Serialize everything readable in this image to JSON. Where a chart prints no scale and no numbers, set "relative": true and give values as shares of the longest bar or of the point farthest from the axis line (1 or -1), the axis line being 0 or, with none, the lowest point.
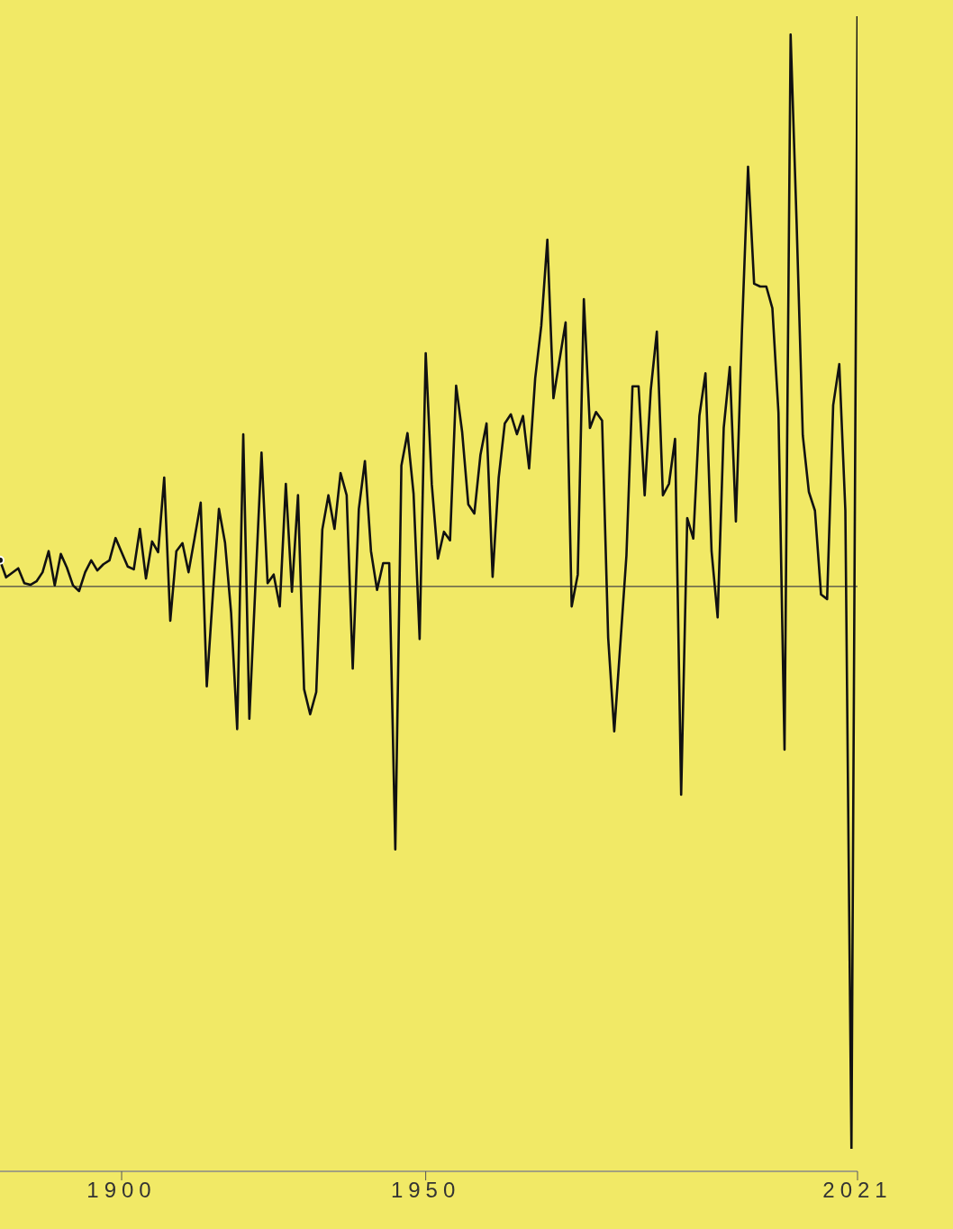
{
  "chart_data": {
    "type": "line",
    "relative": true,
    "x": [
      1880,
      1881,
      1882,
      1883,
      1884,
      1885,
      1886,
      1887,
      1888,
      1889,
      1890,
      1891,
      1892,
      1893,
      1894,
      1895,
      1896,
      1897,
      1898,
      1899,
      1900,
      1901,
      1902,
      1903,
      1904,
      1905,
      1906,
      1907,
      1908,
      1909,
      1910,
      1911,
      1912,
      1913,
      1914,
      1915,
      1916,
      1917,
      1918,
      1919,
      1920,
      1921,
      1922,
      1923,
      1924,
      1925,
      1926,
      1927,
      1928,
      1929,
      1930,
      1931,
      1932,
      1933,
      1934,
      1935,
      1936,
      1937,
      1938,
      1939,
      1940,
      1941,
      1942,
      1943,
      1944,
      1945,
      1946,
      1947,
      1948,
      1949,
      1950,
      1951,
      1952,
      1953,
      1954,
      1955,
      1956,
      1957,
      1958,
      1959,
      1960,
      1961,
      1962,
      1963,
      1964,
      1965,
      1966,
      1967,
      1968,
      1969,
      1970,
      1971,
      1972,
      1973,
      1974,
      1975,
      1976,
      1977,
      1978,
      1979,
      1980,
      1981,
      1982,
      1983,
      1984,
      1985,
      1986,
      1987,
      1988,
      1989,
      1990,
      1991,
      1992,
      1993,
      1994,
      1995,
      1996,
      1997,
      1998,
      1999,
      2000,
      2001,
      2002,
      2003,
      2004,
      2005,
      2006,
      2007,
      2008,
      2009,
      2010,
      2011,
      2012,
      2013,
      2014,
      2015,
      2016,
      2017,
      2018,
      2019,
      2020,
      2021
    ],
    "series": [
      {
        "color": "#111111",
        "values": [
          0.046,
          0.016,
          0.024,
          0.032,
          0.006,
          0.003,
          0.009,
          0.025,
          0.062,
          0.002,
          0.057,
          0.033,
          0.002,
          -0.008,
          0.025,
          0.046,
          0.028,
          0.039,
          0.046,
          0.085,
          0.06,
          0.035,
          0.03,
          0.101,
          0.014,
          0.079,
          0.06,
          0.191,
          -0.06,
          0.062,
          0.076,
          0.025,
          0.085,
          0.147,
          -0.175,
          -0.014,
          0.136,
          0.077,
          -0.046,
          -0.25,
          0.267,
          -0.232,
          0.002,
          0.235,
          0.006,
          0.021,
          -0.035,
          0.18,
          -0.009,
          0.16,
          -0.18,
          -0.224,
          -0.185,
          0.1,
          0.16,
          0.101,
          0.199,
          0.16,
          -0.144,
          0.136,
          0.22,
          0.062,
          -0.006,
          0.041,
          0.041,
          -0.461,
          0.212,
          0.269,
          0.163,
          -0.092,
          0.409,
          0.179,
          0.049,
          0.096,
          0.081,
          0.352,
          0.27,
          0.144,
          0.128,
          0.231,
          0.286,
          0.017,
          0.191,
          0.286,
          0.302,
          0.267,
          0.299,
          0.207,
          0.365,
          0.457,
          0.608,
          0.33,
          0.397,
          0.463,
          -0.035,
          0.021,
          0.504,
          0.278,
          0.306,
          0.291,
          -0.09,
          -0.254,
          -0.101,
          0.054,
          0.351,
          0.351,
          0.16,
          0.344,
          0.447,
          0.16,
          0.18,
          0.259,
          -0.365,
          0.12,
          0.084,
          0.299,
          0.374,
          0.062,
          -0.054,
          0.278,
          0.385,
          0.114,
          0.449,
          0.736,
          0.531,
          0.526,
          0.526,
          0.488,
          0.305,
          -0.286,
          0.968,
          0.633,
          0.265,
          0.166,
          0.133,
          -0.014,
          -0.022,
          0.318,
          0.39,
          0.133,
          -0.986,
          1
        ]
      }
    ],
    "xlim": [
      1880,
      2021
    ],
    "xticks": [
      1900,
      1950,
      2021
    ],
    "ref_lines": [
      {
        "axis": "y",
        "value": 0,
        "color": "#444444"
      }
    ],
    "marker": "none",
    "line_style": "solid"
  }
}
